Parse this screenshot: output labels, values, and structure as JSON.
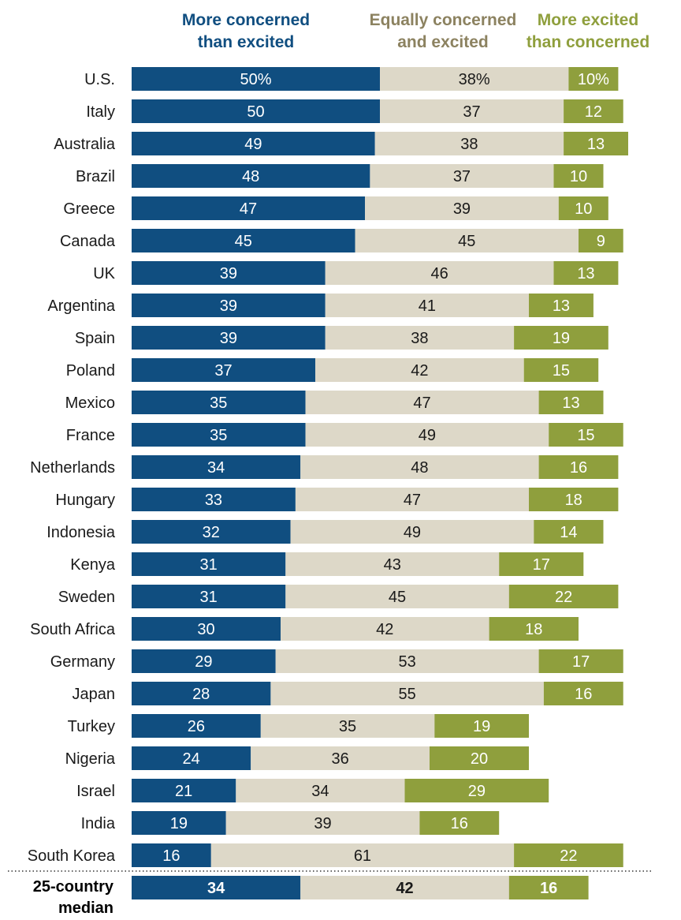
{
  "chart_data": {
    "type": "bar",
    "orientation": "horizontal",
    "stacked": true,
    "colors": {
      "concerned": "#104e80",
      "equal": "#ddd8c8",
      "excited": "#8f9f3d"
    },
    "series": [
      {
        "key": "concerned",
        "name_line1": "More concerned",
        "name_line2": "than excited"
      },
      {
        "key": "equal",
        "name_line1": "Equally concerned",
        "name_line2": "and excited"
      },
      {
        "key": "excited",
        "name_line1": "More excited",
        "name_line2": "than concerned"
      }
    ],
    "rows": [
      {
        "country": "U.S.",
        "concerned": 50,
        "equal": 38,
        "excited": 10,
        "labels": [
          "50%",
          "38%",
          "10%"
        ]
      },
      {
        "country": "Italy",
        "concerned": 50,
        "equal": 37,
        "excited": 12,
        "labels": [
          "50",
          "37",
          "12"
        ]
      },
      {
        "country": "Australia",
        "concerned": 49,
        "equal": 38,
        "excited": 13,
        "labels": [
          "49",
          "38",
          "13"
        ]
      },
      {
        "country": "Brazil",
        "concerned": 48,
        "equal": 37,
        "excited": 10,
        "labels": [
          "48",
          "37",
          "10"
        ]
      },
      {
        "country": "Greece",
        "concerned": 47,
        "equal": 39,
        "excited": 10,
        "labels": [
          "47",
          "39",
          "10"
        ]
      },
      {
        "country": "Canada",
        "concerned": 45,
        "equal": 45,
        "excited": 9,
        "labels": [
          "45",
          "45",
          "9"
        ]
      },
      {
        "country": "UK",
        "concerned": 39,
        "equal": 46,
        "excited": 13,
        "labels": [
          "39",
          "46",
          "13"
        ]
      },
      {
        "country": "Argentina",
        "concerned": 39,
        "equal": 41,
        "excited": 13,
        "labels": [
          "39",
          "41",
          "13"
        ]
      },
      {
        "country": "Spain",
        "concerned": 39,
        "equal": 38,
        "excited": 19,
        "labels": [
          "39",
          "38",
          "19"
        ]
      },
      {
        "country": "Poland",
        "concerned": 37,
        "equal": 42,
        "excited": 15,
        "labels": [
          "37",
          "42",
          "15"
        ]
      },
      {
        "country": "Mexico",
        "concerned": 35,
        "equal": 47,
        "excited": 13,
        "labels": [
          "35",
          "47",
          "13"
        ]
      },
      {
        "country": "France",
        "concerned": 35,
        "equal": 49,
        "excited": 15,
        "labels": [
          "35",
          "49",
          "15"
        ]
      },
      {
        "country": "Netherlands",
        "concerned": 34,
        "equal": 48,
        "excited": 16,
        "labels": [
          "34",
          "48",
          "16"
        ]
      },
      {
        "country": "Hungary",
        "concerned": 33,
        "equal": 47,
        "excited": 18,
        "labels": [
          "33",
          "47",
          "18"
        ]
      },
      {
        "country": "Indonesia",
        "concerned": 32,
        "equal": 49,
        "excited": 14,
        "labels": [
          "32",
          "49",
          "14"
        ]
      },
      {
        "country": "Kenya",
        "concerned": 31,
        "equal": 43,
        "excited": 17,
        "labels": [
          "31",
          "43",
          "17"
        ]
      },
      {
        "country": "Sweden",
        "concerned": 31,
        "equal": 45,
        "excited": 22,
        "labels": [
          "31",
          "45",
          "22"
        ]
      },
      {
        "country": "South Africa",
        "concerned": 30,
        "equal": 42,
        "excited": 18,
        "labels": [
          "30",
          "42",
          "18"
        ]
      },
      {
        "country": "Germany",
        "concerned": 29,
        "equal": 53,
        "excited": 17,
        "labels": [
          "29",
          "53",
          "17"
        ]
      },
      {
        "country": "Japan",
        "concerned": 28,
        "equal": 55,
        "excited": 16,
        "labels": [
          "28",
          "55",
          "16"
        ]
      },
      {
        "country": "Turkey",
        "concerned": 26,
        "equal": 35,
        "excited": 19,
        "labels": [
          "26",
          "35",
          "19"
        ]
      },
      {
        "country": "Nigeria",
        "concerned": 24,
        "equal": 36,
        "excited": 20,
        "labels": [
          "24",
          "36",
          "20"
        ]
      },
      {
        "country": "Israel",
        "concerned": 21,
        "equal": 34,
        "excited": 29,
        "labels": [
          "21",
          "34",
          "29"
        ]
      },
      {
        "country": "India",
        "concerned": 19,
        "equal": 39,
        "excited": 16,
        "labels": [
          "19",
          "39",
          "16"
        ]
      },
      {
        "country": "South Korea",
        "concerned": 16,
        "equal": 61,
        "excited": 22,
        "labels": [
          "16",
          "61",
          "22"
        ]
      }
    ],
    "median": {
      "label_line1": "25-country",
      "label_line2": "median",
      "concerned": 34,
      "equal": 42,
      "excited": 16,
      "labels": [
        "34",
        "42",
        "16"
      ]
    },
    "xlim": [
      0,
      100
    ]
  }
}
